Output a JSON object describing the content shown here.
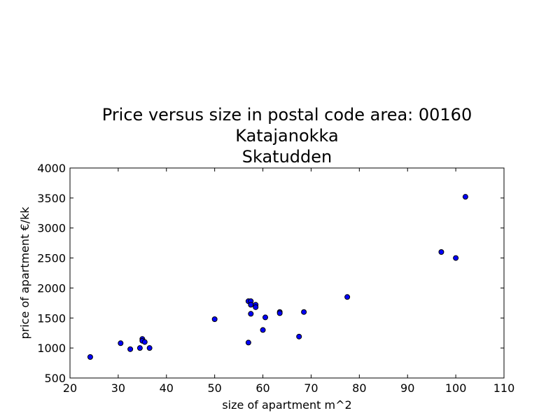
{
  "chart_data": {
    "type": "scatter",
    "title_lines": [
      "Price versus size in postal code area: 00160",
      "Katajanokka",
      "Skatudden"
    ],
    "xlabel": "size of apartment m^2",
    "ylabel": "price of apartment €/kk",
    "xlim": [
      20,
      110
    ],
    "ylim": [
      500,
      4000
    ],
    "xticks": [
      20,
      30,
      40,
      50,
      60,
      70,
      80,
      90,
      100,
      110
    ],
    "yticks": [
      500,
      1000,
      1500,
      2000,
      2500,
      3000,
      3500,
      4000
    ],
    "grid": false,
    "marker_color": "#0000ff",
    "marker_edge_color": "#000000",
    "points": [
      {
        "x": 24.2,
        "y": 850
      },
      {
        "x": 30.5,
        "y": 1080
      },
      {
        "x": 32.5,
        "y": 980
      },
      {
        "x": 34.5,
        "y": 1000
      },
      {
        "x": 35.0,
        "y": 1150
      },
      {
        "x": 35.0,
        "y": 1120
      },
      {
        "x": 35.5,
        "y": 1100
      },
      {
        "x": 36.5,
        "y": 1000
      },
      {
        "x": 50.0,
        "y": 1480
      },
      {
        "x": 57.0,
        "y": 1090
      },
      {
        "x": 57.0,
        "y": 1780
      },
      {
        "x": 57.5,
        "y": 1780
      },
      {
        "x": 57.5,
        "y": 1720
      },
      {
        "x": 57.5,
        "y": 1570
      },
      {
        "x": 58.5,
        "y": 1720
      },
      {
        "x": 58.5,
        "y": 1680
      },
      {
        "x": 60.0,
        "y": 1300
      },
      {
        "x": 60.5,
        "y": 1510
      },
      {
        "x": 63.5,
        "y": 1600
      },
      {
        "x": 63.5,
        "y": 1580
      },
      {
        "x": 67.5,
        "y": 1190
      },
      {
        "x": 68.5,
        "y": 1600
      },
      {
        "x": 77.5,
        "y": 1850
      },
      {
        "x": 97.0,
        "y": 2600
      },
      {
        "x": 100.0,
        "y": 2500
      },
      {
        "x": 102.0,
        "y": 3520
      }
    ]
  }
}
